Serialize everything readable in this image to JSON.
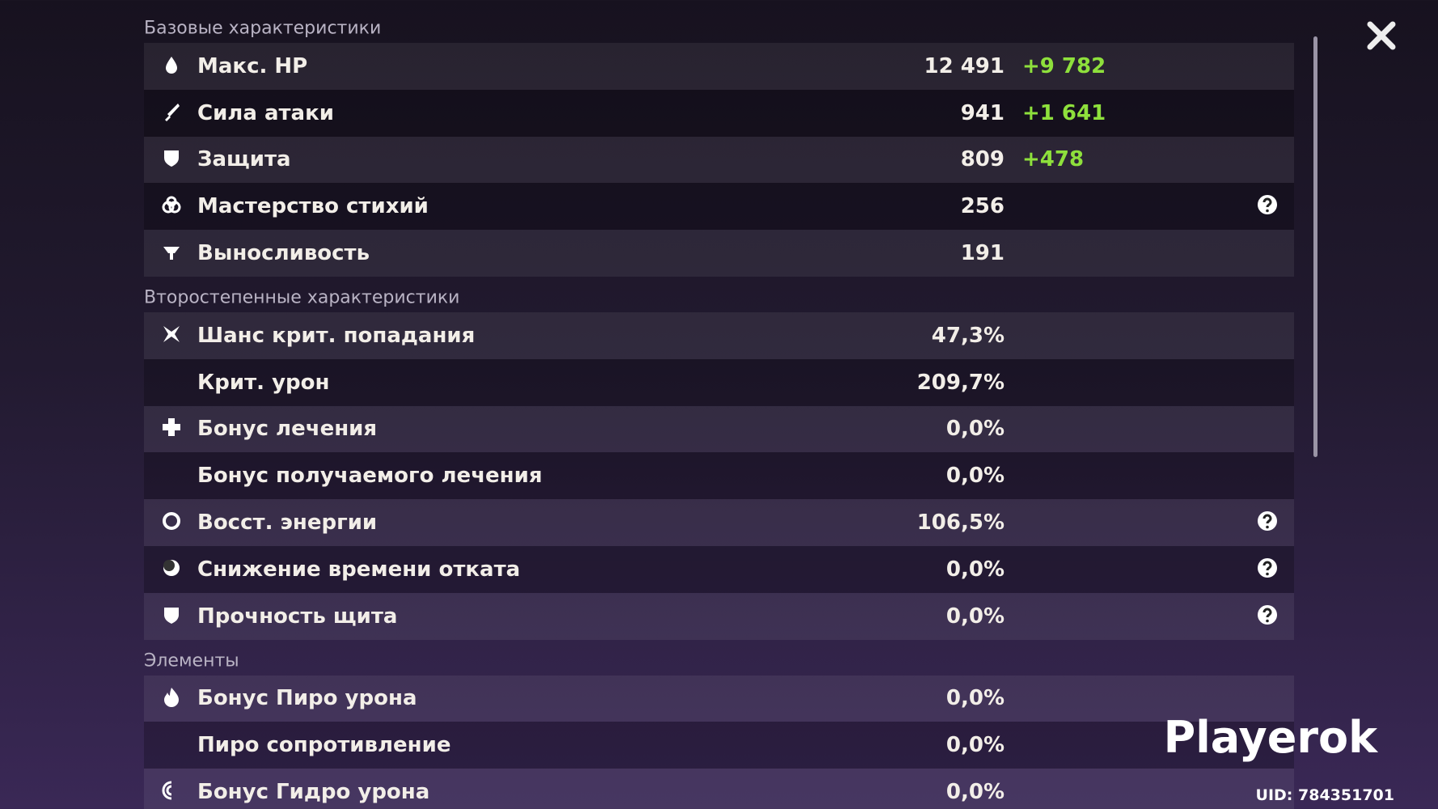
{
  "sections": [
    {
      "title": "Базовые характеристики",
      "rows": [
        {
          "label": "Макс. HP",
          "value": "12 491",
          "bonus": "+9 782"
        },
        {
          "label": "Сила атаки",
          "value": "941",
          "bonus": "+1 641"
        },
        {
          "label": "Защита",
          "value": "809",
          "bonus": "+478"
        },
        {
          "label": "Мастерство стихий",
          "value": "256",
          "help": true
        },
        {
          "label": "Выносливость",
          "value": "191"
        }
      ]
    },
    {
      "title": "Второстепенные характеристики",
      "rows": [
        {
          "label": "Шанс крит. попадания",
          "value": "47,3%"
        },
        {
          "label": "Крит. урон",
          "value": "209,7%"
        },
        {
          "label": "Бонус лечения",
          "value": "0,0%"
        },
        {
          "label": "Бонус получаемого лечения",
          "value": "0,0%"
        },
        {
          "label": "Восст. энергии",
          "value": "106,5%",
          "help": true
        },
        {
          "label": "Снижение времени отката",
          "value": "0,0%",
          "help": true
        },
        {
          "label": "Прочность щита",
          "value": "0,0%",
          "help": true
        }
      ]
    },
    {
      "title": "Элементы",
      "rows": [
        {
          "label": "Бонус Пиро урона",
          "value": "0,0%"
        },
        {
          "label": "Пиро сопротивление",
          "value": "0,0%"
        },
        {
          "label": "Бонус Гидро урона",
          "value": "0,0%"
        }
      ]
    }
  ],
  "watermark": "Playerok",
  "uid": "UID: 784351701"
}
